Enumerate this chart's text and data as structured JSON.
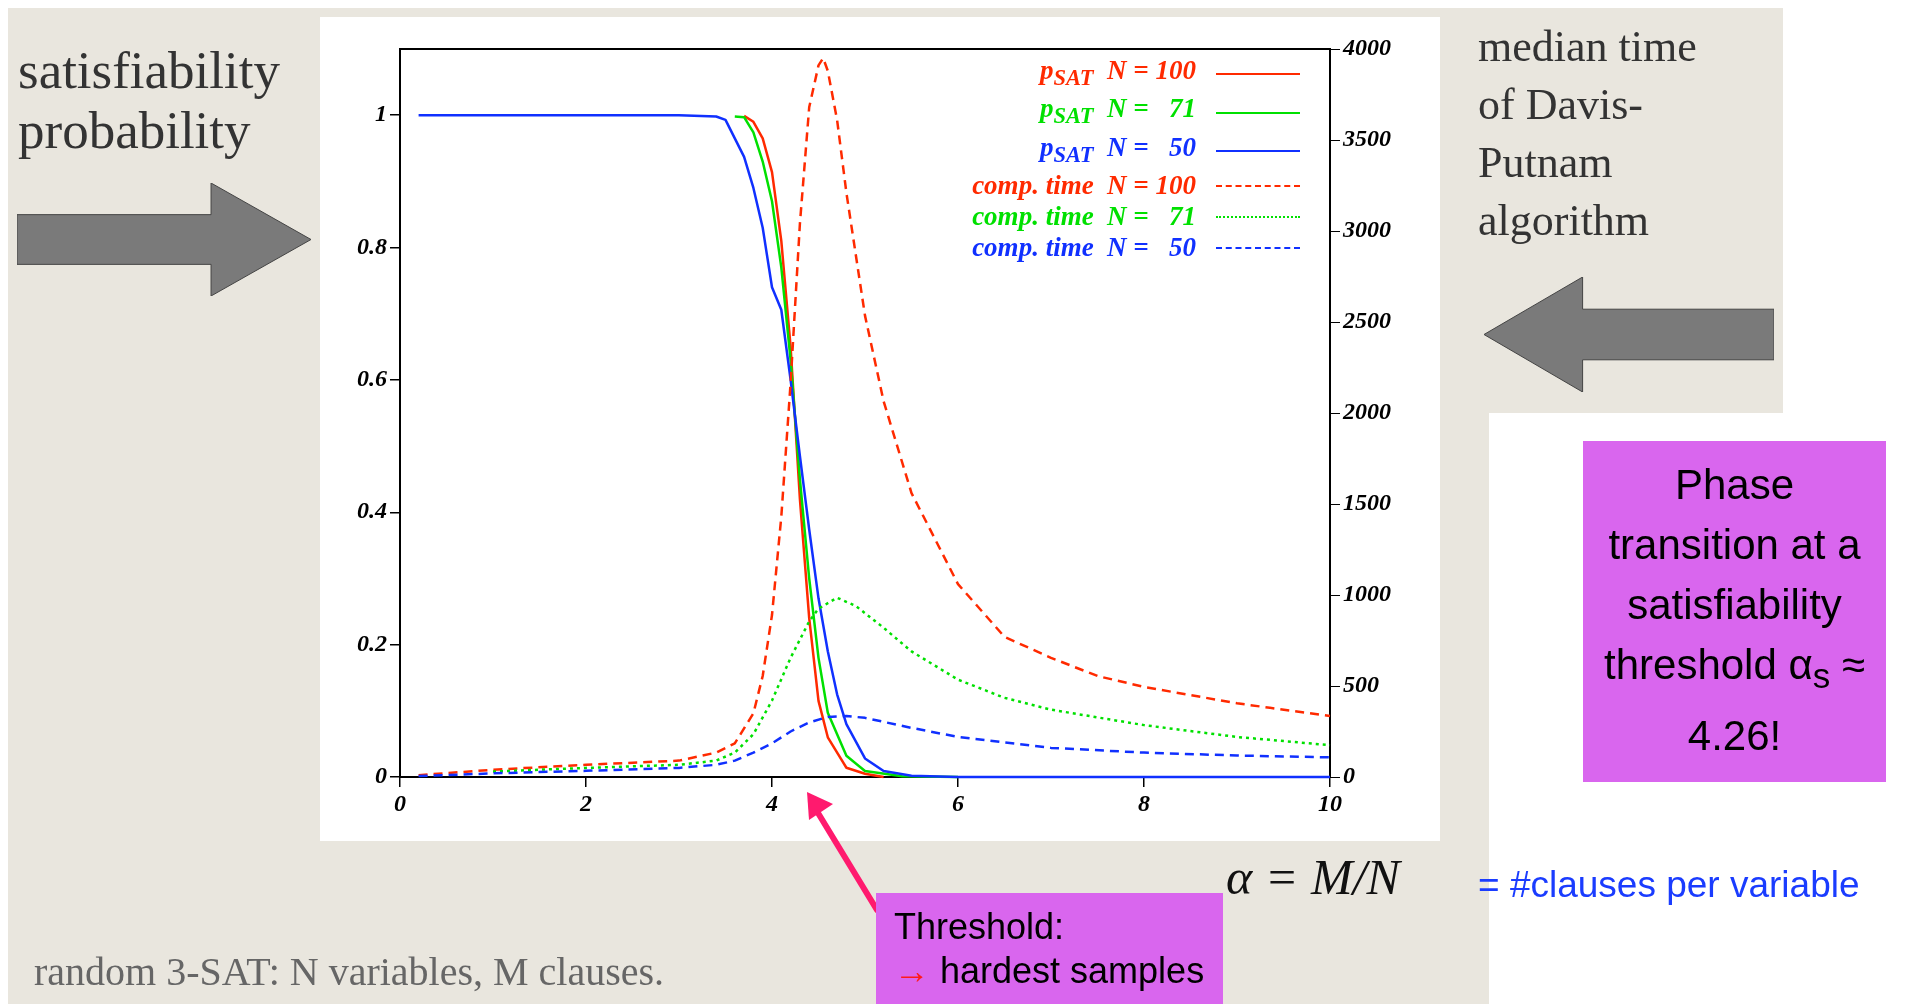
{
  "chart_data": {
    "type": "line",
    "xlabel": "α = M/N",
    "ylabel": "satisfiability probability",
    "y2label": "median time of Davis-Putnam algorithm",
    "xlim": [
      0,
      10
    ],
    "xticks": [
      0,
      2,
      4,
      6,
      8,
      10
    ],
    "ylim": [
      0,
      1.1
    ],
    "yticks": [
      0,
      0.2,
      0.4,
      0.6,
      0.8,
      1
    ],
    "y2lim": [
      0,
      4000
    ],
    "y2ticks": [
      0,
      500,
      1000,
      1500,
      2000,
      2500,
      3000,
      3500,
      4000
    ],
    "legend": "top right",
    "marker": "none",
    "series": [
      {
        "name": "p$_{SAT}$  N = 100",
        "color": "#ff2a00",
        "line_style": "solid",
        "x": [
          3.7,
          3.8,
          3.9,
          4.0,
          4.1,
          4.2,
          4.3,
          4.4,
          4.5,
          4.6,
          4.8,
          5.0,
          5.2
        ],
        "values": [
          0.999,
          0.99,
          0.965,
          0.914,
          0.81,
          0.65,
          0.42,
          0.24,
          0.115,
          0.06,
          0.014,
          0.005,
          0
        ]
      },
      {
        "name": "p$_{SAT}$  N =   71",
        "color": "#00e000",
        "line_style": "solid",
        "x": [
          3.6,
          3.7,
          3.8,
          3.9,
          4.0,
          4.1,
          4.2,
          4.3,
          4.4,
          4.5,
          4.6,
          4.8,
          5.0,
          5.4,
          6
        ],
        "values": [
          0.998,
          0.997,
          0.974,
          0.93,
          0.87,
          0.77,
          0.63,
          0.45,
          0.3,
          0.18,
          0.097,
          0.032,
          0.009,
          0.001,
          0
        ]
      },
      {
        "name": "p$_{SAT}$  N =   50",
        "color": "#1030ff",
        "line_style": "solid",
        "x": [
          0.2,
          1,
          2,
          3,
          3.4,
          3.5,
          3.6,
          3.7,
          3.8,
          3.9,
          4.0,
          4.1,
          4.2,
          4.3,
          4.4,
          4.5,
          4.6,
          4.7,
          4.8,
          5.0,
          5.2,
          5.5,
          6,
          7,
          8,
          9,
          10
        ],
        "values": [
          1,
          1,
          1,
          1,
          0.998,
          0.993,
          0.965,
          0.937,
          0.89,
          0.83,
          0.74,
          0.706,
          0.6,
          0.485,
          0.374,
          0.27,
          0.19,
          0.125,
          0.08,
          0.028,
          0.009,
          0.002,
          0,
          0,
          0,
          0,
          0
        ]
      },
      {
        "name": "comp. time  N = 100",
        "color": "#ff2a00",
        "line_style": "dashed",
        "axis": "y2",
        "x": [
          0.2,
          1,
          2,
          3,
          3.4,
          3.6,
          3.8,
          3.9,
          4.0,
          4.1,
          4.2,
          4.3,
          4.4,
          4.5,
          4.55,
          4.6,
          4.7,
          4.8,
          5.0,
          5.2,
          5.5,
          6,
          6.5,
          7,
          7.5,
          8,
          9,
          10
        ],
        "values": [
          10,
          40,
          67,
          90,
          134,
          185,
          350,
          555,
          890,
          1430,
          2165,
          3040,
          3680,
          3910,
          3950,
          3880,
          3610,
          3210,
          2535,
          2065,
          1560,
          1060,
          770,
          655,
          555,
          495,
          405,
          335
        ]
      },
      {
        "name": "comp. time  N =   71",
        "color": "#00e000",
        "line_style": "dotted",
        "axis": "y2",
        "x": [
          1,
          2,
          3,
          3.4,
          3.6,
          3.8,
          4.0,
          4.2,
          4.4,
          4.5,
          4.7,
          4.9,
          5.2,
          5.5,
          6,
          6.5,
          7,
          8,
          9,
          10
        ],
        "values": [
          30,
          50,
          67,
          90,
          134,
          235,
          420,
          655,
          855,
          925,
          985,
          940,
          820,
          690,
          535,
          435,
          370,
          285,
          220,
          175
        ]
      },
      {
        "name": "comp. time  N =   50",
        "color": "#1030ff",
        "line_style": "dashed",
        "axis": "y2",
        "x": [
          0.2,
          1,
          2,
          3,
          3.4,
          3.6,
          3.8,
          4.0,
          4.2,
          4.4,
          4.6,
          4.8,
          5.0,
          5.5,
          6,
          7,
          8,
          9,
          10
        ],
        "values": [
          5,
          20,
          34,
          50,
          67,
          90,
          134,
          185,
          250,
          300,
          330,
          335,
          325,
          270,
          220,
          160,
          134,
          118,
          108
        ]
      }
    ],
    "annotations": [
      "= #clauses per variable",
      "Phase transition at a satisfiability threshold α$_{s}$ ≈ 4.26!",
      "Threshold:\n→ hardest samples",
      "random 3-SAT: N variables, M clauses."
    ]
  }
}
